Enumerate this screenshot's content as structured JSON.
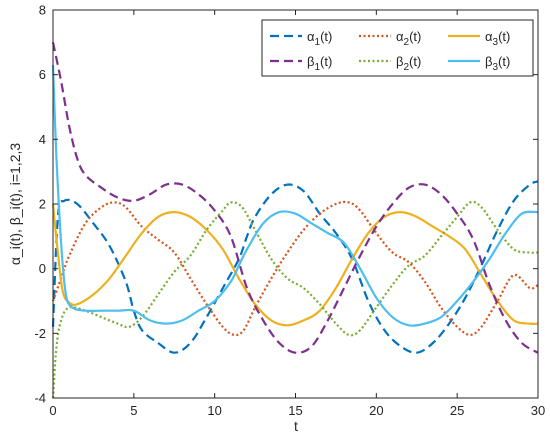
{
  "chart_data": {
    "type": "line",
    "xlabel": "t",
    "ylabel": "α_i(t), β_i(t), i=1,2,3",
    "xlim": [
      0,
      30
    ],
    "ylim": [
      -4,
      8
    ],
    "xticks": [
      0,
      5,
      10,
      15,
      20,
      25,
      30
    ],
    "yticks": [
      -4,
      -2,
      0,
      2,
      4,
      6,
      8
    ],
    "grid": false,
    "legend_position": "top-right",
    "series": [
      {
        "name": "α1(t)",
        "color": "#0072BD",
        "style": "dashed",
        "points": [
          [
            0,
            -1.8
          ],
          [
            0.3,
            1.6
          ],
          [
            0.7,
            2.1
          ],
          [
            1.5,
            2.0
          ],
          [
            2.5,
            1.4
          ],
          [
            3.5,
            0.7
          ],
          [
            4.5,
            -0.4
          ],
          [
            5,
            -1.3
          ],
          [
            5.5,
            -1.9
          ],
          [
            6.5,
            -2.3
          ],
          [
            7.5,
            -2.6
          ],
          [
            8.5,
            -2.3
          ],
          [
            9.5,
            -1.5
          ],
          [
            10.5,
            -0.6
          ],
          [
            11.5,
            0.3
          ],
          [
            12,
            1.0
          ],
          [
            12.5,
            1.6
          ],
          [
            13.5,
            2.3
          ],
          [
            14.5,
            2.6
          ],
          [
            15.5,
            2.4
          ],
          [
            16.5,
            1.7
          ],
          [
            17.5,
            1.1
          ],
          [
            18.5,
            0.3
          ],
          [
            19.5,
            -1.0
          ],
          [
            20.5,
            -1.9
          ],
          [
            21.5,
            -2.4
          ],
          [
            22.5,
            -2.6
          ],
          [
            23.5,
            -2.3
          ],
          [
            24.5,
            -1.7
          ],
          [
            25.5,
            -0.9
          ],
          [
            26.5,
            0.1
          ],
          [
            27.5,
            1.2
          ],
          [
            28.5,
            2.1
          ],
          [
            29.5,
            2.6
          ],
          [
            30,
            2.7
          ]
        ]
      },
      {
        "name": "α2(t)",
        "color": "#D95319",
        "style": "dotted",
        "points": [
          [
            0,
            -1.0
          ],
          [
            0.5,
            -0.3
          ],
          [
            1,
            0.4
          ],
          [
            2,
            1.4
          ],
          [
            3,
            1.9
          ],
          [
            3.8,
            2.05
          ],
          [
            4.5,
            1.9
          ],
          [
            5.5,
            1.3
          ],
          [
            6.5,
            0.9
          ],
          [
            7.5,
            0.5
          ],
          [
            8.5,
            -0.3
          ],
          [
            9.5,
            -1.1
          ],
          [
            10.5,
            -1.8
          ],
          [
            11.2,
            -2.05
          ],
          [
            11.8,
            -1.9
          ],
          [
            12.5,
            -1.2
          ],
          [
            13.5,
            -0.3
          ],
          [
            14.5,
            0.5
          ],
          [
            15.5,
            1.2
          ],
          [
            16.5,
            1.7
          ],
          [
            17.5,
            2.0
          ],
          [
            18.3,
            2.05
          ],
          [
            19,
            1.8
          ],
          [
            20,
            1.1
          ],
          [
            21,
            0.5
          ],
          [
            22,
            0.2
          ],
          [
            23,
            -0.4
          ],
          [
            24,
            -1.2
          ],
          [
            25,
            -1.8
          ],
          [
            25.8,
            -2.05
          ],
          [
            26.5,
            -1.8
          ],
          [
            27.5,
            -1.0
          ],
          [
            28.5,
            -0.2
          ],
          [
            29.5,
            -0.6
          ],
          [
            30,
            -0.5
          ]
        ]
      },
      {
        "name": "α3(t)",
        "color": "#EDB120",
        "style": "solid",
        "points": [
          [
            0,
            2.0
          ],
          [
            0.3,
            0.5
          ],
          [
            0.6,
            -0.7
          ],
          [
            1,
            -1.05
          ],
          [
            1.5,
            -1.1
          ],
          [
            2.5,
            -0.8
          ],
          [
            3.5,
            -0.3
          ],
          [
            4.5,
            0.4
          ],
          [
            5.5,
            1.1
          ],
          [
            6.5,
            1.6
          ],
          [
            7.5,
            1.75
          ],
          [
            8.5,
            1.6
          ],
          [
            9.5,
            1.2
          ],
          [
            10.5,
            0.6
          ],
          [
            11.5,
            -0.3
          ],
          [
            12.5,
            -1.1
          ],
          [
            13.5,
            -1.6
          ],
          [
            14.5,
            -1.75
          ],
          [
            15.5,
            -1.6
          ],
          [
            16.5,
            -1.3
          ],
          [
            17.5,
            -0.6
          ],
          [
            18.5,
            0.3
          ],
          [
            19.5,
            1.1
          ],
          [
            20.5,
            1.6
          ],
          [
            21.5,
            1.75
          ],
          [
            22.5,
            1.6
          ],
          [
            23.5,
            1.3
          ],
          [
            24.5,
            1.0
          ],
          [
            25.5,
            0.6
          ],
          [
            26.5,
            -0.2
          ],
          [
            27.5,
            -1.0
          ],
          [
            28.5,
            -1.6
          ],
          [
            29.5,
            -1.7
          ],
          [
            30,
            -1.7
          ]
        ]
      },
      {
        "name": "β1(t)",
        "color": "#7E2F8E",
        "style": "dashed",
        "points": [
          [
            0,
            7.0
          ],
          [
            0.5,
            5.8
          ],
          [
            1,
            4.4
          ],
          [
            1.5,
            3.4
          ],
          [
            2,
            2.9
          ],
          [
            3,
            2.5
          ],
          [
            4,
            2.2
          ],
          [
            5,
            2.1
          ],
          [
            6,
            2.3
          ],
          [
            7,
            2.6
          ],
          [
            8,
            2.6
          ],
          [
            9,
            2.3
          ],
          [
            10,
            1.8
          ],
          [
            11,
            1.0
          ],
          [
            12,
            -0.6
          ],
          [
            13,
            -1.6
          ],
          [
            14,
            -2.3
          ],
          [
            15,
            -2.6
          ],
          [
            16,
            -2.4
          ],
          [
            17,
            -1.6
          ],
          [
            18,
            -0.6
          ],
          [
            19,
            0.4
          ],
          [
            20,
            1.3
          ],
          [
            21,
            2.0
          ],
          [
            22,
            2.5
          ],
          [
            23,
            2.6
          ],
          [
            24,
            2.3
          ],
          [
            25,
            1.7
          ],
          [
            26,
            0.9
          ],
          [
            27,
            -0.5
          ],
          [
            28,
            -1.6
          ],
          [
            29,
            -2.3
          ],
          [
            30,
            -2.6
          ]
        ]
      },
      {
        "name": "β2(t)",
        "color": "#77AC30",
        "style": "dotted",
        "points": [
          [
            0,
            -4.0
          ],
          [
            0.2,
            -2.5
          ],
          [
            0.5,
            -1.6
          ],
          [
            1,
            -1.2
          ],
          [
            2,
            -1.3
          ],
          [
            3,
            -1.5
          ],
          [
            4,
            -1.7
          ],
          [
            4.7,
            -1.8
          ],
          [
            5.5,
            -1.5
          ],
          [
            6.5,
            -0.8
          ],
          [
            7.5,
            -0.1
          ],
          [
            8.5,
            0.4
          ],
          [
            9.5,
            1.2
          ],
          [
            10.5,
            1.8
          ],
          [
            11,
            2.05
          ],
          [
            11.7,
            1.9
          ],
          [
            12.5,
            1.2
          ],
          [
            13.5,
            0.3
          ],
          [
            14.5,
            -0.3
          ],
          [
            15.5,
            -0.6
          ],
          [
            16.5,
            -1.1
          ],
          [
            17.5,
            -1.7
          ],
          [
            18.3,
            -2.05
          ],
          [
            19,
            -1.9
          ],
          [
            20,
            -1.2
          ],
          [
            21,
            -0.5
          ],
          [
            22,
            0.1
          ],
          [
            23,
            0.4
          ],
          [
            24,
            1.0
          ],
          [
            25,
            1.6
          ],
          [
            25.8,
            2.05
          ],
          [
            26.5,
            1.9
          ],
          [
            27.5,
            1.2
          ],
          [
            28.5,
            0.6
          ],
          [
            29.5,
            0.5
          ],
          [
            30,
            0.5
          ]
        ]
      },
      {
        "name": "β3(t)",
        "color": "#4DBEEE",
        "style": "solid",
        "points": [
          [
            0,
            6.3
          ],
          [
            0.2,
            3.6
          ],
          [
            0.5,
            0.8
          ],
          [
            0.8,
            -0.8
          ],
          [
            1.2,
            -1.2
          ],
          [
            2,
            -1.3
          ],
          [
            3,
            -1.3
          ],
          [
            4,
            -1.3
          ],
          [
            5,
            -1.3
          ],
          [
            6,
            -1.6
          ],
          [
            7,
            -1.7
          ],
          [
            8,
            -1.6
          ],
          [
            9,
            -1.3
          ],
          [
            10,
            -1.0
          ],
          [
            11,
            -0.4
          ],
          [
            11.5,
            0.1
          ],
          [
            12,
            0.6
          ],
          [
            13,
            1.4
          ],
          [
            14,
            1.75
          ],
          [
            15,
            1.7
          ],
          [
            16,
            1.4
          ],
          [
            17,
            1.1
          ],
          [
            18,
            0.8
          ],
          [
            19,
            0.0
          ],
          [
            20,
            -0.9
          ],
          [
            21,
            -1.5
          ],
          [
            22,
            -1.75
          ],
          [
            23,
            -1.7
          ],
          [
            24,
            -1.5
          ],
          [
            25,
            -1.0
          ],
          [
            26,
            -0.4
          ],
          [
            27,
            0.3
          ],
          [
            28,
            1.1
          ],
          [
            29,
            1.7
          ],
          [
            30,
            1.75
          ]
        ]
      }
    ]
  }
}
